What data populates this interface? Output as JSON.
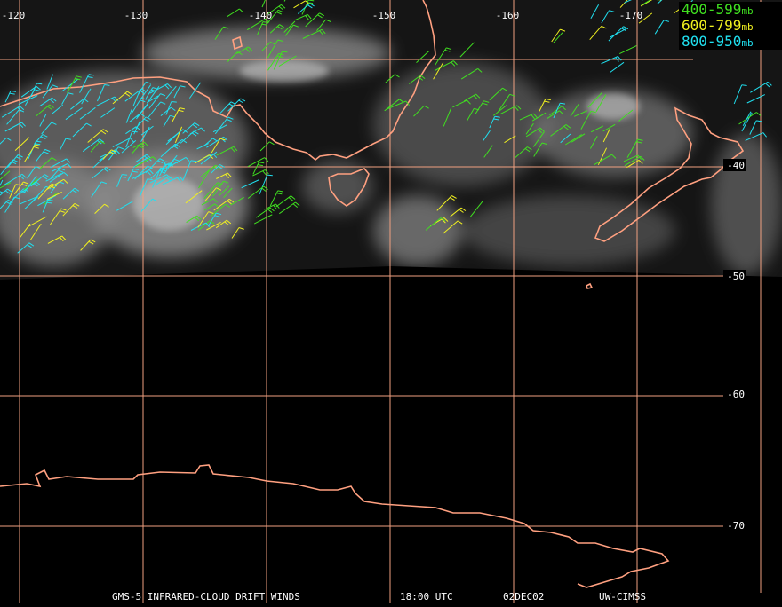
{
  "map": {
    "longitude_labels": [
      "-120",
      "-130",
      "-140",
      "-150",
      "-160",
      "-170"
    ],
    "latitude_labels": [
      "-40",
      "-50",
      "-60",
      "-70"
    ],
    "legend": [
      {
        "label": "400-599",
        "unit": "mb",
        "color": "#40e020"
      },
      {
        "label": "600-799",
        "unit": "mb",
        "color": "#f0f020"
      },
      {
        "label": "800-950",
        "unit": "mb",
        "color": "#20e0f0"
      }
    ],
    "caption": [
      "GMS-5 INFRARED-CLOUD DRIFT WINDS",
      "18:00 UTC",
      "02DEC02",
      "UW-CIMSS"
    ]
  }
}
